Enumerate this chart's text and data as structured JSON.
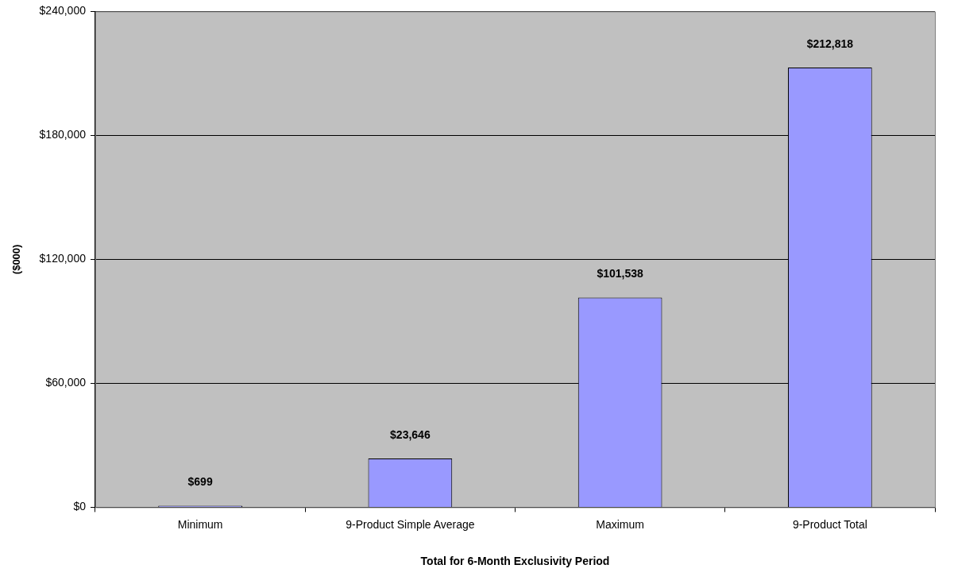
{
  "chart_data": {
    "type": "bar",
    "xlabel": "Total for 6-Month Exclusivity Period",
    "ylabel": "($000)",
    "categories": [
      "Minimum",
      "9-Product Simple Average",
      "Maximum",
      "9-Product Total"
    ],
    "values": [
      699,
      23646,
      101538,
      212818
    ],
    "value_labels": [
      "$699",
      "$23,646",
      "$101,538",
      "$212,818"
    ],
    "color": "#9999ff",
    "ylim": [
      0,
      240000
    ],
    "yticks": [
      {
        "value": 0,
        "label": "$0"
      },
      {
        "value": 60000,
        "label": "$60,000"
      },
      {
        "value": 120000,
        "label": "$120,000"
      },
      {
        "value": 180000,
        "label": "$180,000"
      },
      {
        "value": 240000,
        "label": "$240,000"
      }
    ],
    "grid": "y",
    "legend": false
  }
}
